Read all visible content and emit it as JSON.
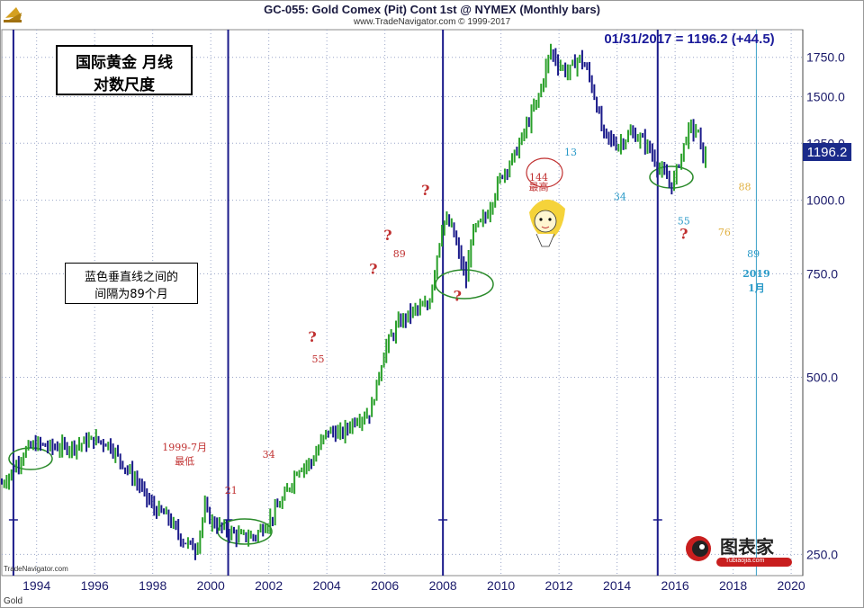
{
  "header": {
    "title": "GC-055:  Gold Comex (Pit) Cont 1st @ NYMEX  (Monthly bars)",
    "credit": "www.TradeNavigator.com © 1999-2017"
  },
  "readout": "01/31/2017 = 1196.2 (+44.5)",
  "last_price": "1196.2",
  "footer": {
    "source": "TradeNavigator.com",
    "symbol": "Gold"
  },
  "boxes": {
    "main_line1": "国际黄金  月线",
    "main_line2": "对数尺度",
    "note_line1": "蓝色垂直线之间的",
    "note_line2": "间隔为89个月"
  },
  "logo": {
    "text": "图表家",
    "sub": "Tubiaojia.com"
  },
  "chart_data": {
    "type": "line",
    "title": "GC-055:  Gold Comex (Pit) Cont 1st @ NYMEX  (Monthly bars)",
    "y_scale": "log",
    "ylim": [
      230,
      1950
    ],
    "xlim": [
      1992.8,
      2020.4
    ],
    "grid": true,
    "x_ticks": [
      "1994",
      "1996",
      "1998",
      "2000",
      "2002",
      "2004",
      "2006",
      "2008",
      "2010",
      "2012",
      "2014",
      "2016",
      "2018",
      "2020"
    ],
    "y_ticks": [
      "1750.0",
      "1500.0",
      "1250.0",
      "1000.0",
      "750.0",
      "500.0",
      "250.0"
    ],
    "series": [
      {
        "x": [
          1992.8,
          1993.0,
          1993.3,
          1993.6,
          1994.0,
          1994.5,
          1995.0,
          1995.5,
          1996.0,
          1996.5,
          1997.0,
          1997.5,
          1998.0,
          1998.5,
          1999.0,
          1999.5,
          1999.8,
          2000.0,
          2000.5,
          2001.0,
          2001.5,
          2002.0,
          2002.5,
          2003.0,
          2003.5,
          2004.0,
          2004.5,
          2005.0,
          2005.5,
          2006.0,
          2006.5,
          2007.0,
          2007.5,
          2008.0,
          2008.3,
          2008.8,
          2009.0,
          2009.5,
          2010.0,
          2010.5,
          2011.0,
          2011.3,
          2011.7,
          2012.0,
          2012.3,
          2012.7,
          2013.0,
          2013.3,
          2013.5,
          2014.0,
          2014.5,
          2015.0,
          2015.5,
          2015.9,
          2016.0,
          2016.3,
          2016.5,
          2016.8,
          2016.95,
          2017.1
        ],
        "values": [
          330,
          338,
          355,
          375,
          385,
          380,
          380,
          385,
          392,
          385,
          355,
          330,
          300,
          290,
          265,
          255,
          300,
          285,
          275,
          268,
          268,
          285,
          310,
          350,
          360,
          405,
          400,
          425,
          435,
          560,
          620,
          650,
          660,
          925,
          900,
          730,
          880,
          940,
          1100,
          1200,
          1380,
          1500,
          1800,
          1700,
          1650,
          1750,
          1650,
          1450,
          1300,
          1240,
          1300,
          1250,
          1120,
          1060,
          1100,
          1240,
          1330,
          1300,
          1180,
          1196.2
        ]
      }
    ],
    "annotations": [
      {
        "text": "1999-7月",
        "x": 1999.1,
        "y": 375
      },
      {
        "text": "最低",
        "x": 1999.1,
        "y": 355
      },
      {
        "text": "21",
        "x": 2000.7,
        "y": 317
      },
      {
        "text": "34",
        "x": 2002.0,
        "y": 365
      },
      {
        "text": "55",
        "x": 2003.7,
        "y": 530
      },
      {
        "text": "89",
        "x": 2006.5,
        "y": 800
      },
      {
        "text": "144",
        "x": 2011.3,
        "y": 1080
      },
      {
        "text": "最高",
        "x": 2011.3,
        "y": 1040
      },
      {
        "text": "13",
        "x": 2012.4,
        "y": 1190
      },
      {
        "text": "34",
        "x": 2014.1,
        "y": 1000
      },
      {
        "text": "55",
        "x": 2016.3,
        "y": 910
      },
      {
        "text": "76",
        "x": 2017.7,
        "y": 870
      },
      {
        "text": "88",
        "x": 2018.4,
        "y": 1040
      },
      {
        "text": "89",
        "x": 2018.7,
        "y": 800
      },
      {
        "text": "2019",
        "x": 2018.8,
        "y": 740
      },
      {
        "text": "1月",
        "x": 2018.8,
        "y": 700
      },
      {
        "text": "?",
        "x": 2003.5,
        "y": 575
      },
      {
        "text": "?",
        "x": 2005.6,
        "y": 750
      },
      {
        "text": "?",
        "x": 2006.1,
        "y": 855
      },
      {
        "text": "?",
        "x": 2007.4,
        "y": 1020
      },
      {
        "text": "?",
        "x": 2008.5,
        "y": 675
      },
      {
        "text": "?",
        "x": 2016.3,
        "y": 860
      }
    ],
    "vertical_lines": [
      1993.2,
      2000.6,
      2008.0,
      2015.4,
      2018.8
    ]
  }
}
